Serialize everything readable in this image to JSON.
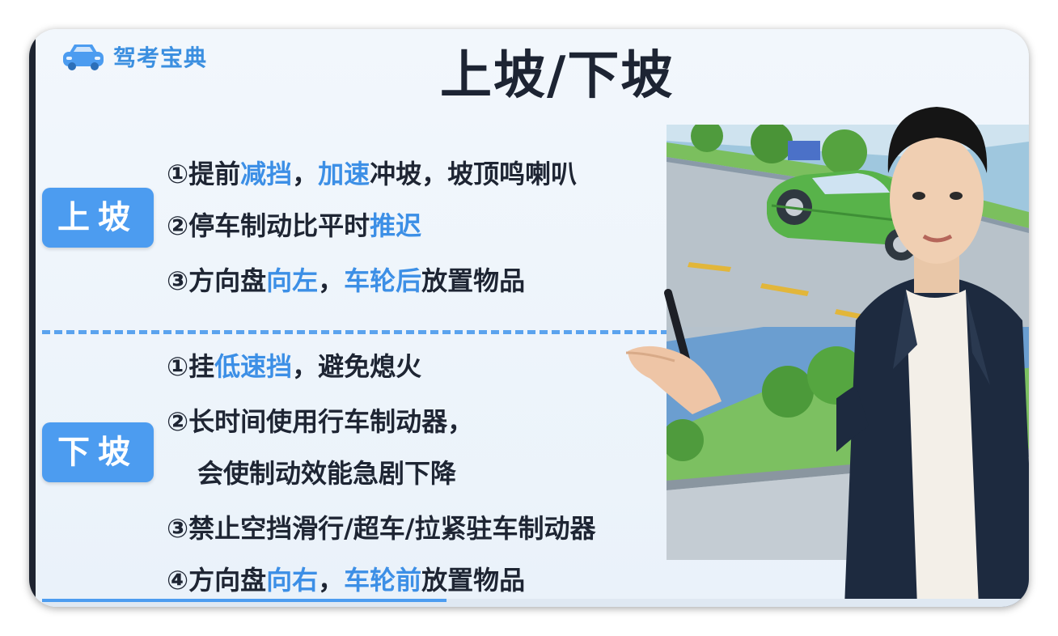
{
  "logo": {
    "text": "驾考宝典",
    "icon": "car-icon",
    "color": "#3b8fe0"
  },
  "title": "上坡/下坡",
  "colors": {
    "accent": "#4c9cf0",
    "highlight": "#3c8fe6",
    "text": "#1e2533"
  },
  "uphill": {
    "label": "上坡",
    "items": [
      {
        "num": "①",
        "parts": [
          {
            "t": "提前",
            "hl": false
          },
          {
            "t": "减挡",
            "hl": true
          },
          {
            "t": "，",
            "hl": false
          },
          {
            "t": "加速",
            "hl": true
          },
          {
            "t": "冲坡，坡顶鸣喇叭",
            "hl": false
          }
        ]
      },
      {
        "num": "②",
        "parts": [
          {
            "t": "停车制动比平时",
            "hl": false
          },
          {
            "t": "推迟",
            "hl": true
          }
        ]
      },
      {
        "num": "③",
        "parts": [
          {
            "t": "方向盘",
            "hl": false
          },
          {
            "t": "向左",
            "hl": true
          },
          {
            "t": "，",
            "hl": false
          },
          {
            "t": "车轮后",
            "hl": true
          },
          {
            "t": "放置物品",
            "hl": false
          }
        ]
      }
    ]
  },
  "downhill": {
    "label": "下坡",
    "items": [
      {
        "num": "①",
        "parts": [
          {
            "t": "挂",
            "hl": false
          },
          {
            "t": "低速挡",
            "hl": true
          },
          {
            "t": "，避免熄火",
            "hl": false
          }
        ]
      },
      {
        "num": "②",
        "parts": [
          {
            "t": "长时间使用行车制动器，",
            "hl": false
          }
        ]
      },
      {
        "num": "",
        "parts": [
          {
            "t": "会使制动效能急剧下降",
            "hl": false
          }
        ]
      },
      {
        "num": "③",
        "parts": [
          {
            "t": "禁止空挡滑行/超车/拉紧驻车制动器",
            "hl": false
          }
        ]
      },
      {
        "num": "④",
        "parts": [
          {
            "t": "方向盘",
            "hl": false
          },
          {
            "t": "向右",
            "hl": true
          },
          {
            "t": "，",
            "hl": false
          },
          {
            "t": "车轮前",
            "hl": true
          },
          {
            "t": "放置物品",
            "hl": false
          }
        ]
      }
    ]
  }
}
